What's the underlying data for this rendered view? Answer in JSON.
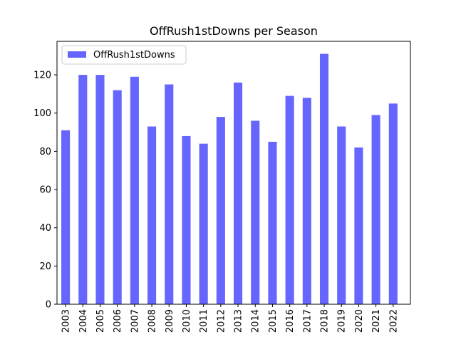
{
  "chart_data": {
    "type": "bar",
    "title": "OffRush1stDowns per Season",
    "xlabel": "",
    "ylabel": "",
    "categories": [
      "2003",
      "2004",
      "2005",
      "2006",
      "2007",
      "2008",
      "2009",
      "2010",
      "2011",
      "2012",
      "2013",
      "2014",
      "2015",
      "2016",
      "2017",
      "2018",
      "2019",
      "2020",
      "2021",
      "2022"
    ],
    "series": [
      {
        "name": "OffRush1stDowns",
        "color": "#6666ff",
        "values": [
          91,
          120,
          120,
          112,
          119,
          93,
          115,
          88,
          84,
          98,
          116,
          96,
          85,
          109,
          108,
          131,
          93,
          82,
          99,
          105
        ]
      }
    ],
    "ylim": [
      0,
      137.55
    ],
    "yticks": [
      0,
      20,
      40,
      60,
      80,
      100,
      120
    ],
    "grid": false,
    "legend": "upper-left"
  }
}
